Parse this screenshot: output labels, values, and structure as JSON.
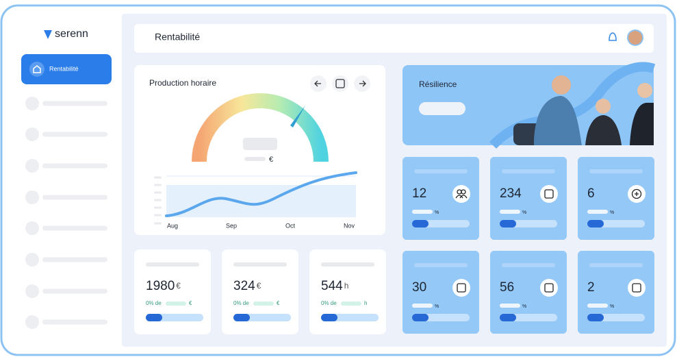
{
  "sidebar": {
    "brand": "serenn",
    "active_item": "Rentabilité"
  },
  "header": {
    "title": "Rentabilité"
  },
  "production": {
    "title": "Production horaire",
    "unit": "€",
    "months": [
      "Aug",
      "Sep",
      "Oct",
      "Nov"
    ]
  },
  "resilience": {
    "title": "Résilience"
  },
  "summary_cards": [
    {
      "value": 1980,
      "unit": "€",
      "note": "0% de",
      "note_unit": "€"
    },
    {
      "value": 324,
      "unit": "€",
      "note": "0% de",
      "note_unit": "€"
    },
    {
      "value": 544,
      "unit": "h",
      "note": "0% de",
      "note_unit": "h"
    }
  ],
  "stat_cards": [
    {
      "value": 12,
      "unit": "%"
    },
    {
      "value": 234,
      "unit": "%"
    },
    {
      "value": 6,
      "unit": "%"
    },
    {
      "value": 30,
      "unit": "%"
    },
    {
      "value": 56,
      "unit": "%"
    },
    {
      "value": 2,
      "unit": "%"
    }
  ]
}
